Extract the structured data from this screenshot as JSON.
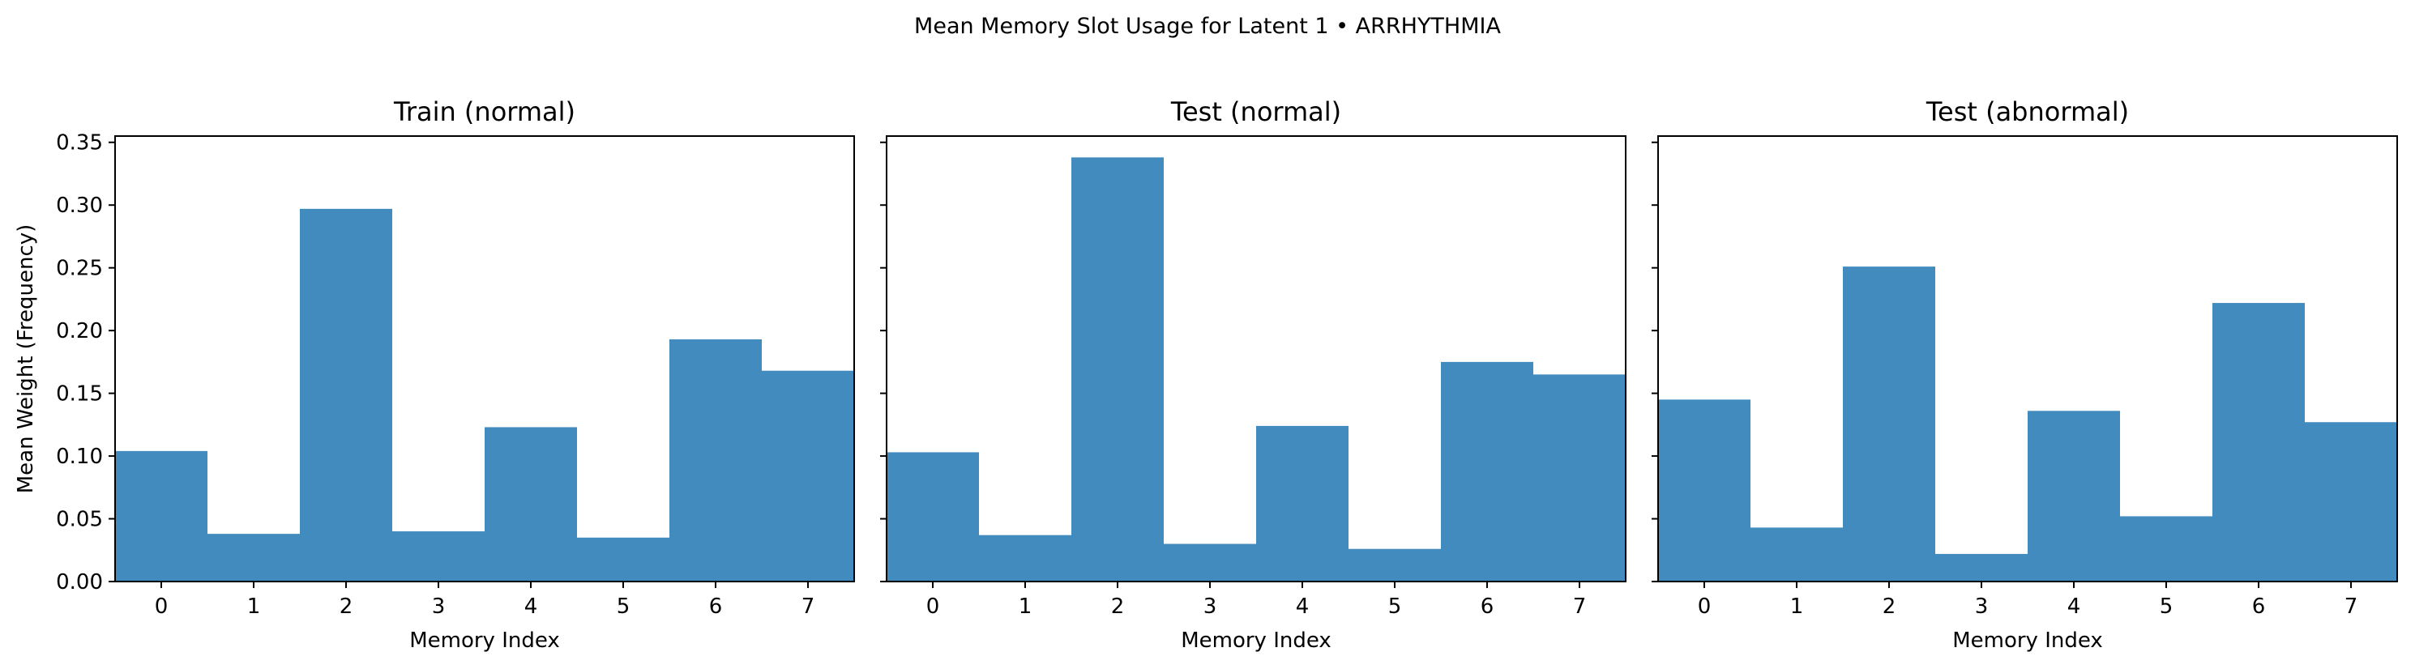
{
  "figure": {
    "suptitle": "Mean Memory Slot Usage for Latent 1 • ARRHYTHMIA",
    "bar_color": "#428bbf"
  },
  "chart_data": [
    {
      "type": "bar",
      "title": "Train (normal)",
      "xlabel": "Memory Index",
      "ylabel": "Mean Weight (Frequency)",
      "categories": [
        "0",
        "1",
        "2",
        "3",
        "4",
        "5",
        "6",
        "7"
      ],
      "values": [
        0.104,
        0.038,
        0.297,
        0.04,
        0.123,
        0.035,
        0.193,
        0.168
      ],
      "ylim": [
        0,
        0.355
      ],
      "yticks": [
        "0.00",
        "0.05",
        "0.10",
        "0.15",
        "0.20",
        "0.25",
        "0.30",
        "0.35"
      ],
      "grid": false,
      "bar_width": 1.0
    },
    {
      "type": "bar",
      "title": "Test (normal)",
      "xlabel": "Memory Index",
      "ylabel": "",
      "categories": [
        "0",
        "1",
        "2",
        "3",
        "4",
        "5",
        "6",
        "7"
      ],
      "values": [
        0.103,
        0.037,
        0.338,
        0.03,
        0.124,
        0.026,
        0.175,
        0.165
      ],
      "ylim": [
        0,
        0.355
      ],
      "yticks": [],
      "grid": false,
      "bar_width": 1.0
    },
    {
      "type": "bar",
      "title": "Test (abnormal)",
      "xlabel": "Memory Index",
      "ylabel": "",
      "categories": [
        "0",
        "1",
        "2",
        "3",
        "4",
        "5",
        "6",
        "7"
      ],
      "values": [
        0.145,
        0.043,
        0.251,
        0.022,
        0.136,
        0.052,
        0.222,
        0.127
      ],
      "ylim": [
        0,
        0.355
      ],
      "yticks": [],
      "grid": false,
      "bar_width": 1.0
    }
  ]
}
